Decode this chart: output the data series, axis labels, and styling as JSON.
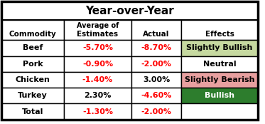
{
  "title": "Year-over-Year",
  "header_line1": [
    "",
    "Average of",
    "",
    ""
  ],
  "header_line2": [
    "Commodity",
    "Estimates",
    "Actual",
    "Effects"
  ],
  "rows": [
    [
      "Beef",
      "-5.70%",
      "-8.70%",
      "Slightly Bullish"
    ],
    [
      "Pork",
      "-0.90%",
      "-2.00%",
      "Neutral"
    ],
    [
      "Chicken",
      "-1.40%",
      "3.00%",
      "Slightly Bearish"
    ],
    [
      "Turkey",
      "2.30%",
      "-4.60%",
      "Bullish"
    ],
    [
      "Total",
      "-1.30%",
      "-2.00%",
      ""
    ]
  ],
  "estimate_colors": [
    "#FF0000",
    "#FF0000",
    "#FF0000",
    "#000000",
    "#FF0000"
  ],
  "actual_colors": [
    "#FF0000",
    "#FF0000",
    "#000000",
    "#FF0000",
    "#FF0000"
  ],
  "effects_bg": [
    "#C6D9A0",
    "#FFFFFF",
    "#E8A0A0",
    "#2D7D2D",
    "#FFFFFF"
  ],
  "effects_text_color": [
    "#000000",
    "#000000",
    "#000000",
    "#FFFFFF",
    "#000000"
  ],
  "figsize": [
    3.73,
    1.74
  ],
  "dpi": 100
}
